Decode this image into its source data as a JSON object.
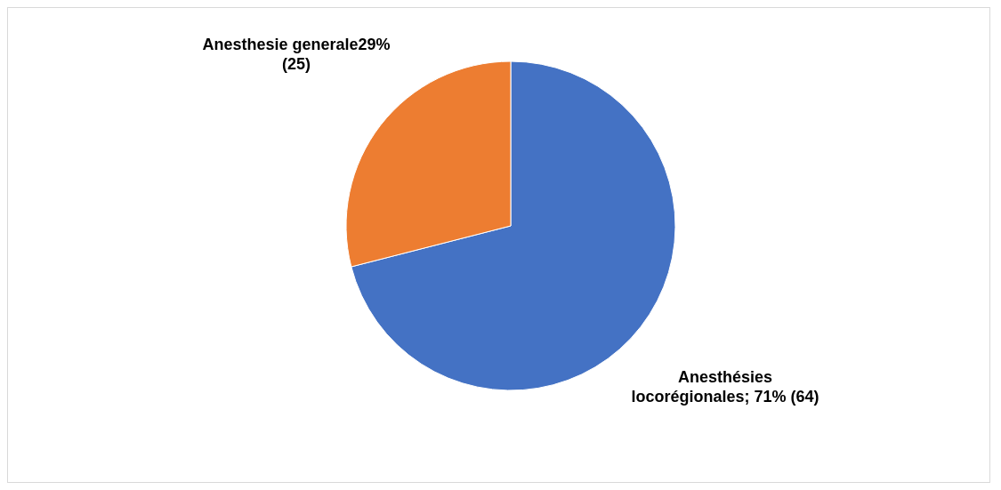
{
  "chart_data": {
    "type": "pie",
    "categories": [
      "Anesthésies locorégionales",
      "Anesthesie generale"
    ],
    "values": [
      71,
      29
    ],
    "colors": [
      "#4472c4",
      "#ed7d31"
    ],
    "value_labels": [
      "; 71% (64)",
      "29% (25)"
    ],
    "legend": false
  }
}
